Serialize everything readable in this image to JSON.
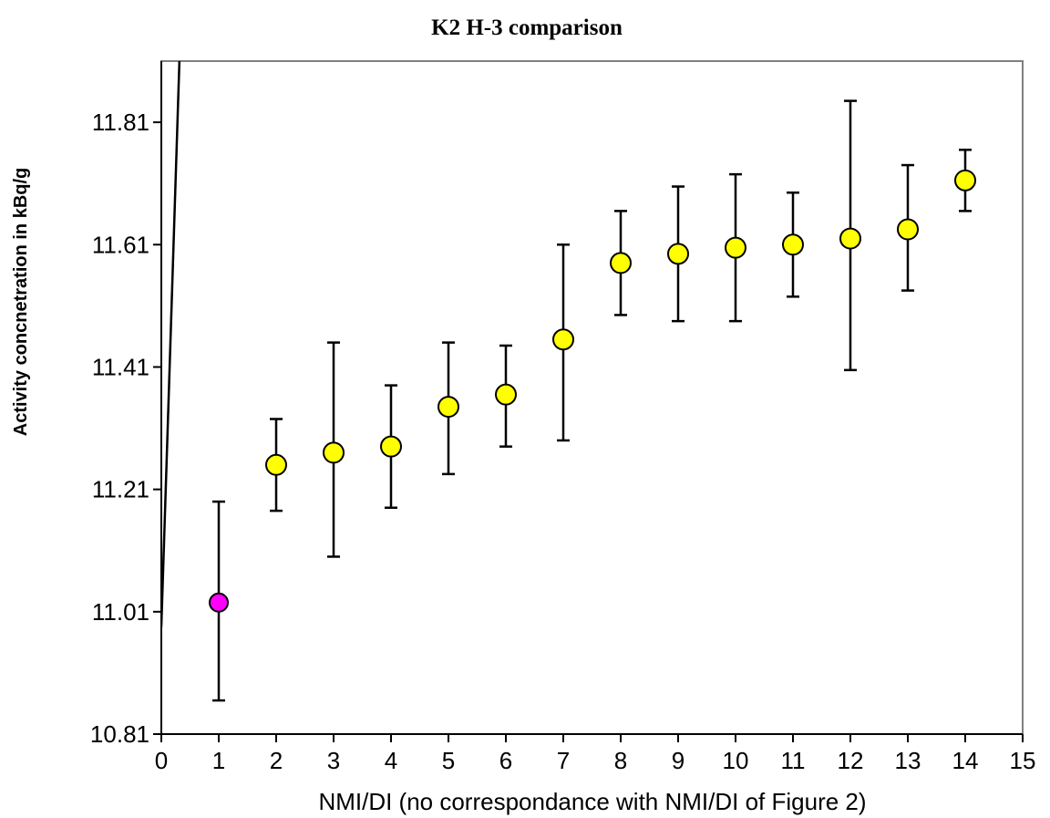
{
  "chart_data": {
    "type": "scatter",
    "title": "K2 H-3 comparison",
    "xlabel": "NMI/DI (no correspondance with NMI/DI of Figure 2)",
    "ylabel": "Activity concnetration in kBq/g",
    "xlim": [
      0,
      15
    ],
    "ylim": [
      10.81,
      11.91
    ],
    "x_ticks": [
      0,
      1,
      2,
      3,
      4,
      5,
      6,
      7,
      8,
      9,
      10,
      11,
      12,
      13,
      14,
      15
    ],
    "y_ticks": [
      10.81,
      11.01,
      11.21,
      11.41,
      11.61,
      11.81
    ],
    "y_tick_labels": [
      "10.81",
      "11.01",
      "11.21",
      "11.41",
      "11.61",
      "11.81"
    ],
    "grid": false,
    "legend": "none",
    "series": [
      {
        "color": "#ff00ff",
        "points": [
          {
            "x": 1,
            "y": 11.025,
            "err_low": 10.865,
            "err_high": 11.19
          }
        ]
      },
      {
        "color": "#ffff00",
        "points": [
          {
            "x": 2,
            "y": 11.25,
            "err_low": 11.175,
            "err_high": 11.325
          },
          {
            "x": 3,
            "y": 11.27,
            "err_low": 11.1,
            "err_high": 11.45
          },
          {
            "x": 4,
            "y": 11.28,
            "err_low": 11.18,
            "err_high": 11.38
          },
          {
            "x": 5,
            "y": 11.345,
            "err_low": 11.235,
            "err_high": 11.45
          },
          {
            "x": 6,
            "y": 11.365,
            "err_low": 11.28,
            "err_high": 11.445
          },
          {
            "x": 7,
            "y": 11.455,
            "err_low": 11.29,
            "err_high": 11.61
          },
          {
            "x": 8,
            "y": 11.58,
            "err_low": 11.495,
            "err_high": 11.665
          },
          {
            "x": 9,
            "y": 11.595,
            "err_low": 11.485,
            "err_high": 11.705
          },
          {
            "x": 10,
            "y": 11.605,
            "err_low": 11.485,
            "err_high": 11.725
          },
          {
            "x": 11,
            "y": 11.61,
            "err_low": 11.525,
            "err_high": 11.695
          },
          {
            "x": 12,
            "y": 11.62,
            "err_low": 11.405,
            "err_high": 11.845
          },
          {
            "x": 13,
            "y": 11.635,
            "err_low": 11.535,
            "err_high": 11.74
          },
          {
            "x": 14,
            "y": 11.715,
            "err_low": 11.665,
            "err_high": 11.765
          }
        ]
      }
    ],
    "reference_line": {
      "x_start": 0,
      "y_start": 10.985,
      "x_end": 0.315,
      "y_end": 11.91
    }
  }
}
